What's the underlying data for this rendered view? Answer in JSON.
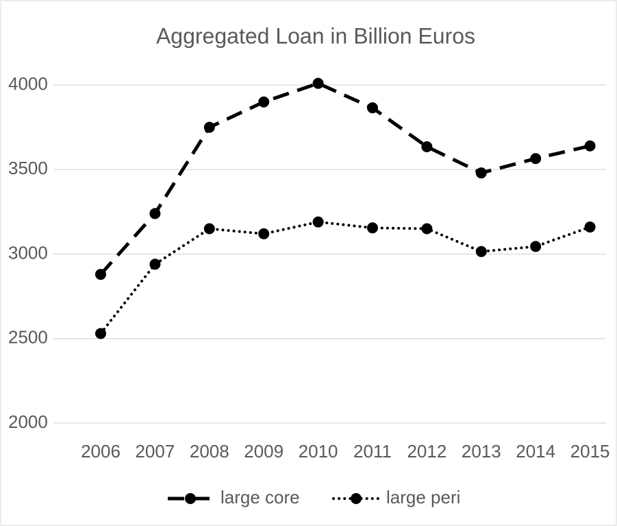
{
  "chart_data": {
    "type": "line",
    "title": "Aggregated Loan in Billion Euros",
    "categories": [
      "2006",
      "2007",
      "2008",
      "2009",
      "2010",
      "2011",
      "2012",
      "2013",
      "2014",
      "2015"
    ],
    "series": [
      {
        "name": "large core",
        "color": "#000000",
        "dash": "dashed",
        "values": [
          2880,
          3240,
          3750,
          3900,
          4010,
          3865,
          3635,
          3480,
          3565,
          3640
        ]
      },
      {
        "name": "large peri",
        "color": "#000000",
        "dash": "dotted",
        "values": [
          2530,
          2940,
          3150,
          3120,
          3190,
          3155,
          3150,
          3015,
          3045,
          3160
        ]
      }
    ],
    "ylim": [
      2000,
      4000
    ],
    "yticks": [
      2000,
      2500,
      3000,
      3500,
      4000
    ],
    "grid": true,
    "legend": "bottom"
  }
}
